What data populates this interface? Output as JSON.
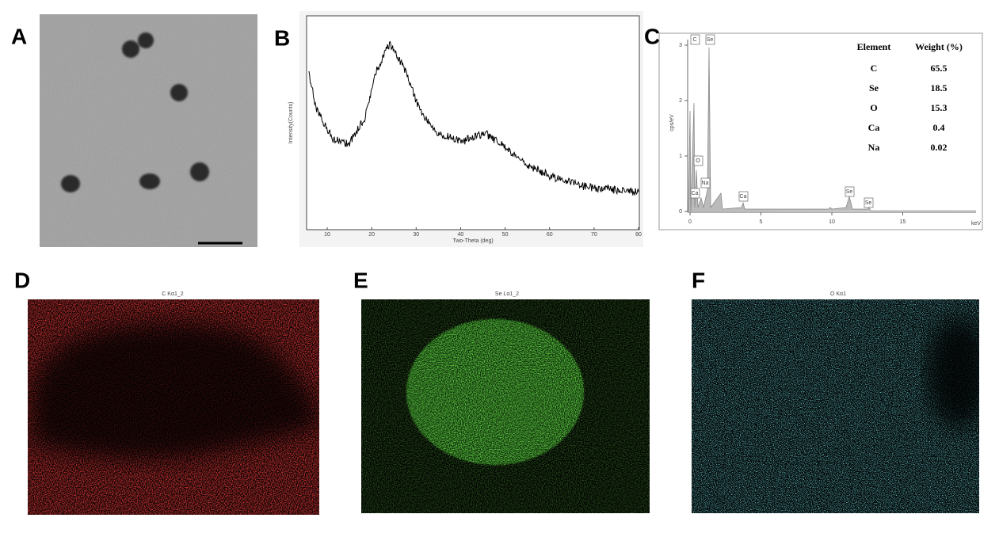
{
  "panels": {
    "a": {
      "label": "A"
    },
    "b": {
      "label": "B",
      "x_label": "Two-Theta (deg)",
      "y_label": "Intensity(Counts)",
      "xticks": [
        10,
        20,
        30,
        40,
        50,
        60,
        70,
        80
      ]
    },
    "c": {
      "label": "C",
      "y_label": "cps/eV",
      "x_label": "keV",
      "xticks": [
        0,
        5,
        10,
        15
      ],
      "yticks": [
        0,
        1,
        2,
        3
      ],
      "peaks": [
        "C",
        "Se",
        "O",
        "Na",
        "Ca",
        "Ca",
        "Se",
        "Se"
      ],
      "table": {
        "header": [
          "Element",
          "Weight (%)"
        ],
        "rows": [
          [
            "C",
            65.5
          ],
          [
            "Se",
            18.5
          ],
          [
            "O",
            15.3
          ],
          [
            "Ca",
            0.4
          ],
          [
            "Na",
            0.02
          ]
        ]
      }
    },
    "d": {
      "label": "D",
      "title": "C Kα1_2"
    },
    "e": {
      "label": "E",
      "title": "Se Lα1_2"
    },
    "f": {
      "label": "F",
      "title": "O Kα1"
    }
  }
}
